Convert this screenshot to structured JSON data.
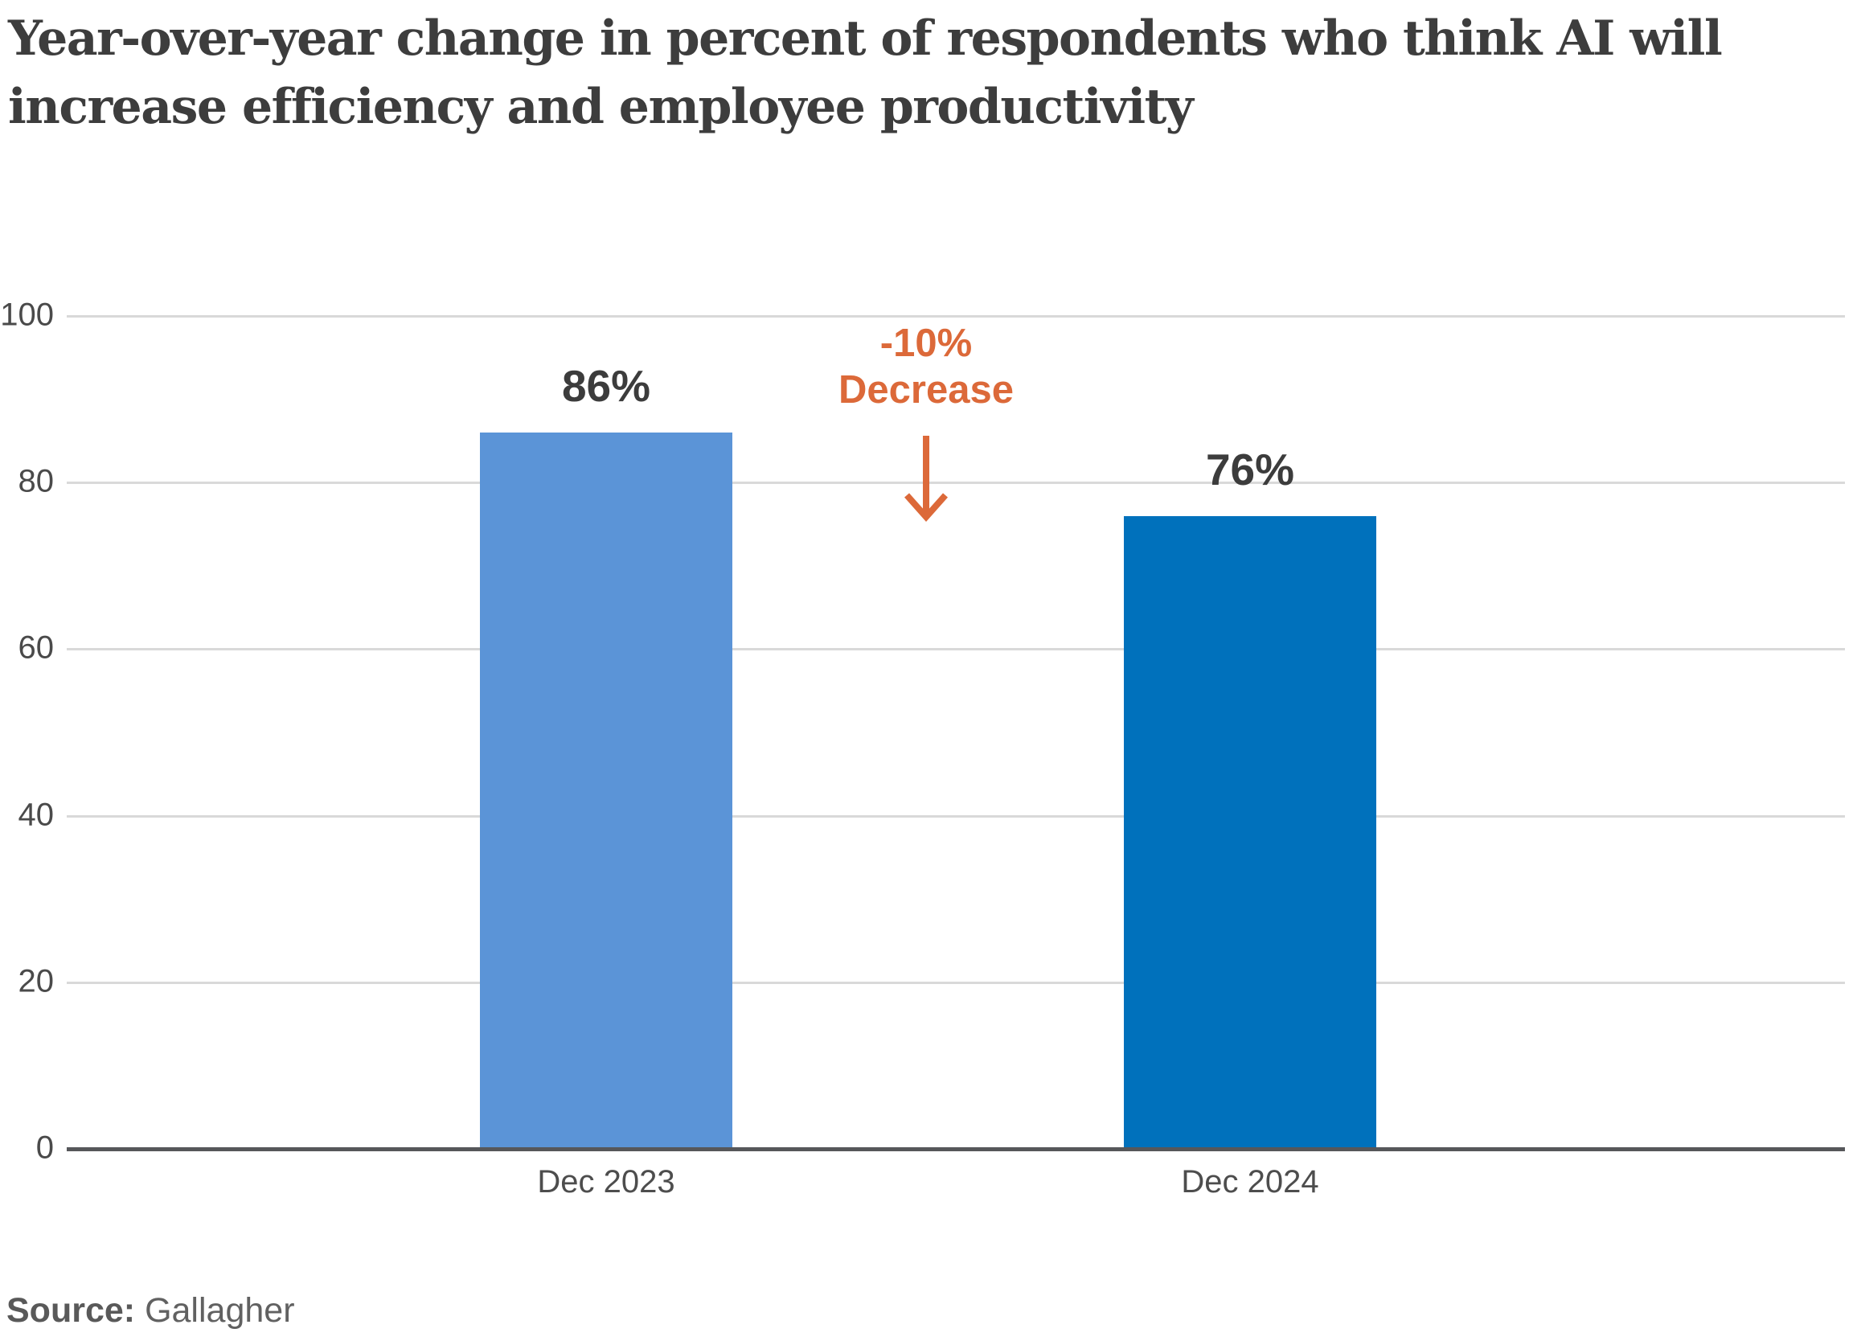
{
  "title_lines": [
    "Year-over-year change in percent of respondents who think AI will",
    "increase efficiency and employee productivity"
  ],
  "annotation": {
    "line1": "-10%",
    "line2": "Decrease"
  },
  "source": {
    "label": "Source:",
    "value": "Gallagher"
  },
  "colors": {
    "bar_dec_2023": "#5b94d7",
    "bar_dec_2024": "#0071bc",
    "annotation_orange": "#dc6939",
    "gridline": "#d9d9d9",
    "axis_line": "#56575a",
    "title_text": "#3d3d3d",
    "tick_text": "#4a4a4a",
    "value_text": "#3c3c3c",
    "source_text": "#616161"
  },
  "chart_data": {
    "type": "bar",
    "title": "Year-over-year change in percent of respondents who think AI will increase efficiency and employee productivity",
    "categories": [
      "Dec 2023",
      "Dec 2024"
    ],
    "values": [
      86,
      76
    ],
    "value_labels": [
      "86%",
      "76%"
    ],
    "bar_colors": [
      "#5b94d7",
      "#0071bc"
    ],
    "xlabel": "",
    "ylabel": "",
    "ylim": [
      0,
      100
    ],
    "yticks": [
      0,
      20,
      40,
      60,
      80,
      100
    ],
    "grid": "horizontal",
    "legend_position": "none",
    "annotation": "-10% Decrease (between Dec 2023 and Dec 2024 bars, orange, with downward arrow)",
    "source": "Source: Gallagher"
  }
}
